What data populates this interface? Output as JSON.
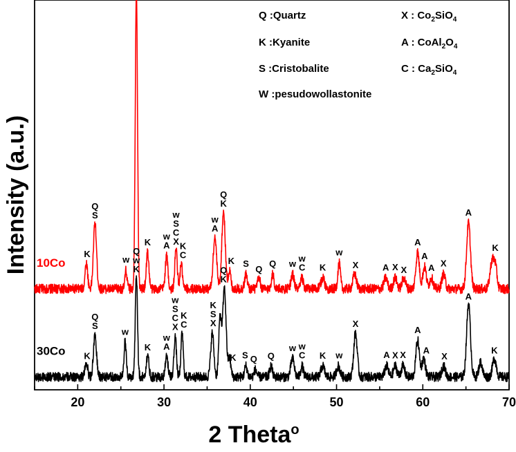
{
  "chart_data": {
    "type": "line",
    "xlabel": "2 Theta",
    "xlabel_sup": "o",
    "ylabel": "Intensity (a.u.)",
    "xlim": [
      15,
      70
    ],
    "ylim": [
      0,
      100
    ],
    "xticks": [
      20,
      30,
      40,
      50,
      60,
      70
    ],
    "y_ticks_shown": false,
    "grid": false,
    "legend_position": "top-right",
    "legend": [
      {
        "key": "Q",
        "sep": " :",
        "text": "Quartz"
      },
      {
        "key": "X",
        "sep": " : ",
        "text": "Co2SiO4",
        "parts": [
          "Co",
          "2",
          "SiO",
          "4"
        ]
      },
      {
        "key": "K",
        "sep": " :",
        "text": "Kyanite"
      },
      {
        "key": "A",
        "sep": " : ",
        "text": "CoAl2O4",
        "parts": [
          "CoAl",
          "2",
          "O",
          "4"
        ]
      },
      {
        "key": "S",
        "sep": " :",
        "text": "Cristobalite"
      },
      {
        "key": "C",
        "sep": " : ",
        "text": "Ca2SiO4",
        "parts": [
          "Ca",
          "2",
          "SiO",
          "4"
        ]
      },
      {
        "key": "W",
        "sep": " :",
        "text": "pesudowollastonite"
      }
    ],
    "series": [
      {
        "name": "10Co",
        "color": "#ff0000",
        "baseline": 26,
        "noise": 0.8,
        "peaks": [
          [
            21.0,
            7,
            0.15
          ],
          [
            22.0,
            18,
            0.18
          ],
          [
            25.6,
            5,
            0.12
          ],
          [
            26.8,
            82,
            0.13
          ],
          [
            28.1,
            10,
            0.15
          ],
          [
            30.3,
            9,
            0.15
          ],
          [
            31.4,
            11,
            0.14
          ],
          [
            32.0,
            7,
            0.13
          ],
          [
            35.9,
            14,
            0.2
          ],
          [
            36.9,
            21,
            0.2
          ],
          [
            37.6,
            5,
            0.15
          ],
          [
            39.5,
            4,
            0.15
          ],
          [
            41.0,
            3,
            0.15
          ],
          [
            42.6,
            4,
            0.15
          ],
          [
            44.9,
            4,
            0.18
          ],
          [
            46.0,
            3,
            0.15
          ],
          [
            48.4,
            3,
            0.2
          ],
          [
            50.3,
            7,
            0.15
          ],
          [
            52.1,
            4,
            0.2
          ],
          [
            55.7,
            3,
            0.2
          ],
          [
            56.8,
            3,
            0.2
          ],
          [
            57.8,
            3,
            0.2
          ],
          [
            59.4,
            10,
            0.2
          ],
          [
            60.2,
            6,
            0.2
          ],
          [
            61.0,
            3,
            0.2
          ],
          [
            62.4,
            4,
            0.2
          ],
          [
            65.3,
            18,
            0.22
          ],
          [
            68.0,
            7,
            0.22
          ],
          [
            68.4,
            6,
            0.2
          ]
        ],
        "label": "10Co"
      },
      {
        "name": "30Co",
        "color": "#000000",
        "baseline": 2,
        "noise": 0.8,
        "peaks": [
          [
            21.0,
            4,
            0.15
          ],
          [
            22.0,
            11,
            0.18
          ],
          [
            25.5,
            10,
            0.12
          ],
          [
            26.8,
            28,
            0.13
          ],
          [
            28.1,
            6,
            0.15
          ],
          [
            30.3,
            6,
            0.15
          ],
          [
            31.3,
            11,
            0.14
          ],
          [
            32.1,
            12,
            0.13
          ],
          [
            35.6,
            12,
            0.18
          ],
          [
            36.5,
            16,
            0.15
          ],
          [
            37.0,
            24,
            0.2
          ],
          [
            37.6,
            5,
            0.15
          ],
          [
            39.5,
            3,
            0.15
          ],
          [
            40.6,
            2,
            0.15
          ],
          [
            42.4,
            3,
            0.15
          ],
          [
            44.9,
            5,
            0.2
          ],
          [
            46.0,
            3,
            0.15
          ],
          [
            48.4,
            3,
            0.2
          ],
          [
            50.2,
            3,
            0.2
          ],
          [
            52.2,
            12,
            0.2
          ],
          [
            55.8,
            3,
            0.2
          ],
          [
            56.8,
            3,
            0.2
          ],
          [
            57.7,
            3,
            0.2
          ],
          [
            59.4,
            10,
            0.2
          ],
          [
            60.1,
            5,
            0.2
          ],
          [
            62.4,
            3,
            0.2
          ],
          [
            65.3,
            20,
            0.22
          ],
          [
            66.7,
            4,
            0.2
          ],
          [
            68.3,
            5,
            0.22
          ]
        ],
        "label": "30Co"
      }
    ],
    "annotations": [
      {
        "series": "10Co",
        "labels": [
          {
            "x": 21.1,
            "lines": [
              "K"
            ]
          },
          {
            "x": 22.0,
            "lines": [
              "Q",
              "S"
            ]
          },
          {
            "x": 25.6,
            "lines": [
              "w"
            ]
          },
          {
            "x": 26.8,
            "lines": [
              "Q",
              "w",
              "K"
            ]
          },
          {
            "x": 28.1,
            "lines": [
              "K"
            ]
          },
          {
            "x": 30.3,
            "lines": [
              "w",
              "A"
            ]
          },
          {
            "x": 31.4,
            "lines": [
              "w",
              "S",
              "C",
              "X"
            ]
          },
          {
            "x": 32.2,
            "lines": [
              "K",
              "C"
            ]
          },
          {
            "x": 35.9,
            "lines": [
              "w",
              "A"
            ]
          },
          {
            "x": 36.9,
            "lines": [
              "Q",
              "K"
            ]
          },
          {
            "x": 37.8,
            "lines": [
              "K"
            ]
          },
          {
            "x": 39.5,
            "lines": [
              "S"
            ]
          },
          {
            "x": 41.0,
            "lines": [
              "Q"
            ]
          },
          {
            "x": 42.6,
            "lines": [
              "Q"
            ]
          },
          {
            "x": 44.9,
            "lines": [
              "w"
            ]
          },
          {
            "x": 46.0,
            "lines": [
              "w",
              "C"
            ]
          },
          {
            "x": 48.4,
            "lines": [
              "K"
            ]
          },
          {
            "x": 50.3,
            "lines": [
              "w"
            ]
          },
          {
            "x": 52.2,
            "lines": [
              "X"
            ]
          },
          {
            "x": 55.7,
            "lines": [
              "A"
            ]
          },
          {
            "x": 56.8,
            "lines": [
              "X"
            ]
          },
          {
            "x": 57.8,
            "lines": [
              "X"
            ]
          },
          {
            "x": 59.4,
            "lines": [
              "A"
            ]
          },
          {
            "x": 60.2,
            "lines": [
              "A"
            ]
          },
          {
            "x": 61.0,
            "lines": [
              "A"
            ]
          },
          {
            "x": 62.4,
            "lines": [
              "X"
            ]
          },
          {
            "x": 65.3,
            "lines": [
              "A"
            ]
          },
          {
            "x": 68.4,
            "lines": [
              "K"
            ]
          }
        ]
      },
      {
        "series": "30Co",
        "labels": [
          {
            "x": 21.1,
            "lines": [
              "K"
            ]
          },
          {
            "x": 22.0,
            "lines": [
              "Q",
              "S"
            ]
          },
          {
            "x": 25.5,
            "lines": [
              "w"
            ]
          },
          {
            "x": 26.8,
            "lines": [
              "Q",
              "w",
              "K"
            ]
          },
          {
            "x": 28.1,
            "lines": [
              "K"
            ]
          },
          {
            "x": 30.3,
            "lines": [
              "w",
              "A"
            ]
          },
          {
            "x": 31.3,
            "lines": [
              "w",
              "S",
              "C",
              "X"
            ]
          },
          {
            "x": 32.3,
            "lines": [
              "K",
              "C"
            ]
          },
          {
            "x": 35.7,
            "lines": [
              "K",
              "S",
              "X"
            ]
          },
          {
            "x": 36.9,
            "lines": [
              "Q",
              "K"
            ]
          },
          {
            "x": 38.0,
            "lines": [
              "K"
            ]
          },
          {
            "x": 39.4,
            "lines": [
              "S"
            ]
          },
          {
            "x": 40.4,
            "lines": [
              "Q"
            ]
          },
          {
            "x": 42.4,
            "lines": [
              "Q"
            ]
          },
          {
            "x": 44.9,
            "lines": [
              "w"
            ]
          },
          {
            "x": 46.0,
            "lines": [
              "w",
              "C"
            ]
          },
          {
            "x": 48.4,
            "lines": [
              "K"
            ]
          },
          {
            "x": 50.3,
            "lines": [
              "w"
            ]
          },
          {
            "x": 52.2,
            "lines": [
              "X"
            ]
          },
          {
            "x": 55.8,
            "lines": [
              "A"
            ]
          },
          {
            "x": 56.8,
            "lines": [
              "X"
            ]
          },
          {
            "x": 57.7,
            "lines": [
              "X"
            ]
          },
          {
            "x": 59.4,
            "lines": [
              "A"
            ]
          },
          {
            "x": 60.4,
            "lines": [
              "A"
            ]
          },
          {
            "x": 62.5,
            "lines": [
              "X"
            ]
          },
          {
            "x": 65.3,
            "lines": [
              "A"
            ]
          },
          {
            "x": 68.3,
            "lines": [
              "K"
            ]
          }
        ]
      }
    ]
  }
}
